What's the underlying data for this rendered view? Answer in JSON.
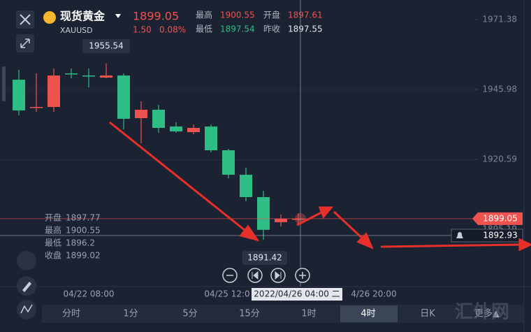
{
  "header": {
    "name": "现货黄金",
    "symbol": "XAUUSD",
    "price": "1899.05",
    "change": "1.50",
    "change_pct": "0.08%",
    "high_label": "最高",
    "high": "1900.55",
    "open_label": "开盘",
    "open": "1897.61",
    "low_label": "最低",
    "low": "1897.54",
    "prev_label": "昨收",
    "prev": "1897.55"
  },
  "chart_data": {
    "type": "candlestick",
    "up_color": "#ef5350",
    "down_color": "#2ebd85",
    "candles": [
      {
        "open": 1949.54,
        "high": 1953.1,
        "low": 1936.6,
        "close": 1938.37
      },
      {
        "open": 1939.4,
        "high": 1951.83,
        "low": 1937.87,
        "close": 1939.64
      },
      {
        "open": 1939.64,
        "high": 1953.61,
        "low": 1937.87,
        "close": 1951.07
      },
      {
        "open": 1951.83,
        "high": 1953.61,
        "low": 1950.05,
        "close": 1951.83
      },
      {
        "open": 1951.07,
        "high": 1953.61,
        "low": 1946.75,
        "close": 1951.07
      },
      {
        "open": 1950.31,
        "high": 1955.54,
        "low": 1950.05,
        "close": 1951.07
      },
      {
        "open": 1951.07,
        "high": 1951.83,
        "low": 1931.52,
        "close": 1935.33
      },
      {
        "open": 1935.58,
        "high": 1941.67,
        "low": 1926.44,
        "close": 1938.63
      },
      {
        "open": 1938.63,
        "high": 1940.4,
        "low": 1930.25,
        "close": 1932.03
      },
      {
        "open": 1932.53,
        "high": 1934.06,
        "low": 1930.25,
        "close": 1930.76
      },
      {
        "open": 1930.5,
        "high": 1933.29,
        "low": 1929.74,
        "close": 1932.03
      },
      {
        "open": 1932.53,
        "high": 1933.29,
        "low": 1923.14,
        "close": 1923.9
      },
      {
        "open": 1923.9,
        "high": 1924.41,
        "low": 1913.74,
        "close": 1915.01
      },
      {
        "open": 1915.01,
        "high": 1917.55,
        "low": 1905.37,
        "close": 1906.89
      },
      {
        "open": 1906.89,
        "high": 1909.17,
        "low": 1891.42,
        "close": 1895.0
      },
      {
        "open": 1897.77,
        "high": 1900.55,
        "low": 1896.2,
        "close": 1899.02
      },
      {
        "open": 1898.79,
        "high": 1901.05,
        "low": 1897.24,
        "close": 1899.05
      }
    ],
    "ylim": [
      1874.39,
      1978.49
    ],
    "yticks": [
      1971.38,
      1945.98,
      1920.59,
      1895.19
    ],
    "price_lines": [
      {
        "value": 1899.05,
        "color": "#f0524f"
      },
      {
        "value": 1892.93,
        "color": "#dfe3ea"
      }
    ],
    "ohlc_labels": [
      "开盘",
      "最高",
      "最低",
      "收盘"
    ],
    "x_labels": [
      "04/22 08:00",
      "04/25 12:0",
      "4/26 20:00"
    ],
    "crosshair_label": "2022/04/26 04:00 二"
  },
  "toolbar": {
    "tabs": [
      "分时",
      "1分",
      "5分",
      "15分",
      "1时",
      "4时",
      "日K",
      "更多▲"
    ],
    "active": 5
  },
  "watermark": "汇外网"
}
